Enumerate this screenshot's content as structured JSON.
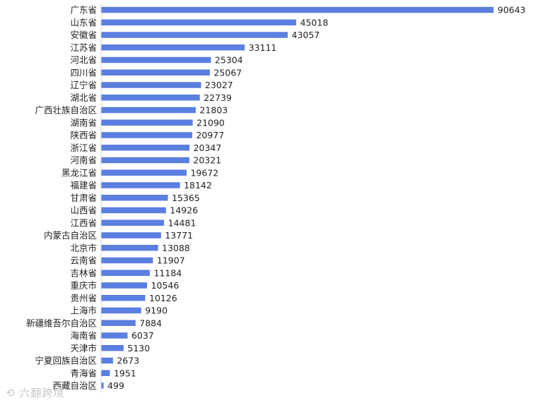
{
  "chart_data": {
    "type": "bar",
    "orientation": "horizontal",
    "categories": [
      "广东省",
      "山东省",
      "安徽省",
      "江苏省",
      "河北省",
      "四川省",
      "辽宁省",
      "湖北省",
      "广西壮族自治区",
      "湖南省",
      "陕西省",
      "浙江省",
      "河南省",
      "黑龙江省",
      "福建省",
      "甘肃省",
      "山西省",
      "江西省",
      "内蒙古自治区",
      "北京市",
      "云南省",
      "吉林省",
      "重庆市",
      "贵州省",
      "上海市",
      "新疆维吾尔自治区",
      "海南省",
      "天津市",
      "宁夏回族自治区",
      "青海省",
      "西藏自治区"
    ],
    "values": [
      90643,
      45018,
      43057,
      33111,
      25304,
      25067,
      23027,
      22739,
      21803,
      21090,
      20977,
      20347,
      20321,
      19672,
      18142,
      15365,
      14926,
      14481,
      13771,
      13088,
      11907,
      11184,
      10546,
      10126,
      9190,
      7884,
      6037,
      5130,
      2673,
      1951,
      499
    ],
    "bar_color": "#5b7fe0",
    "xlim": [
      0,
      90643
    ],
    "grid": false
  },
  "watermark": "六翻跨境"
}
